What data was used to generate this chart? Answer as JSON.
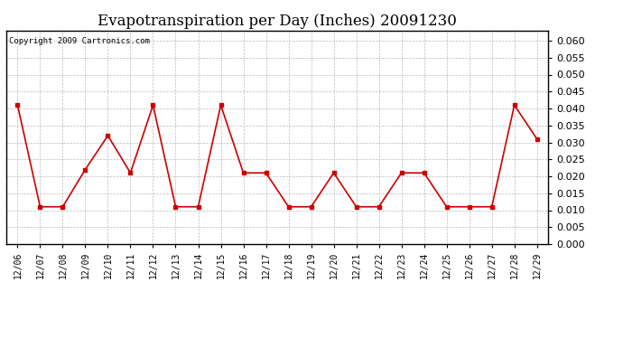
{
  "title": "Evapotranspiration per Day (Inches) 20091230",
  "copyright_text": "Copyright 2009 Cartronics.com",
  "dates": [
    "12/06",
    "12/07",
    "12/08",
    "12/09",
    "12/10",
    "12/11",
    "12/12",
    "12/13",
    "12/14",
    "12/15",
    "12/16",
    "12/17",
    "12/18",
    "12/19",
    "12/20",
    "12/21",
    "12/22",
    "12/23",
    "12/24",
    "12/25",
    "12/26",
    "12/27",
    "12/28",
    "12/29"
  ],
  "values": [
    0.041,
    0.011,
    0.011,
    0.022,
    0.032,
    0.021,
    0.041,
    0.011,
    0.011,
    0.041,
    0.021,
    0.021,
    0.011,
    0.011,
    0.021,
    0.011,
    0.011,
    0.021,
    0.021,
    0.011,
    0.011,
    0.011,
    0.041,
    0.031
  ],
  "line_color": "#cc0000",
  "marker": "s",
  "marker_size": 3,
  "ylim": [
    0.0,
    0.063
  ],
  "yticks": [
    0.0,
    0.005,
    0.01,
    0.015,
    0.02,
    0.025,
    0.03,
    0.035,
    0.04,
    0.045,
    0.05,
    0.055,
    0.06
  ],
  "grid_color": "#bbbbbb",
  "grid_style": "--",
  "background_color": "#ffffff",
  "plot_bg_color": "#ffffff",
  "title_fontsize": 12,
  "copyright_fontsize": 6.5,
  "tick_fontsize": 7,
  "ytick_fontsize": 8
}
